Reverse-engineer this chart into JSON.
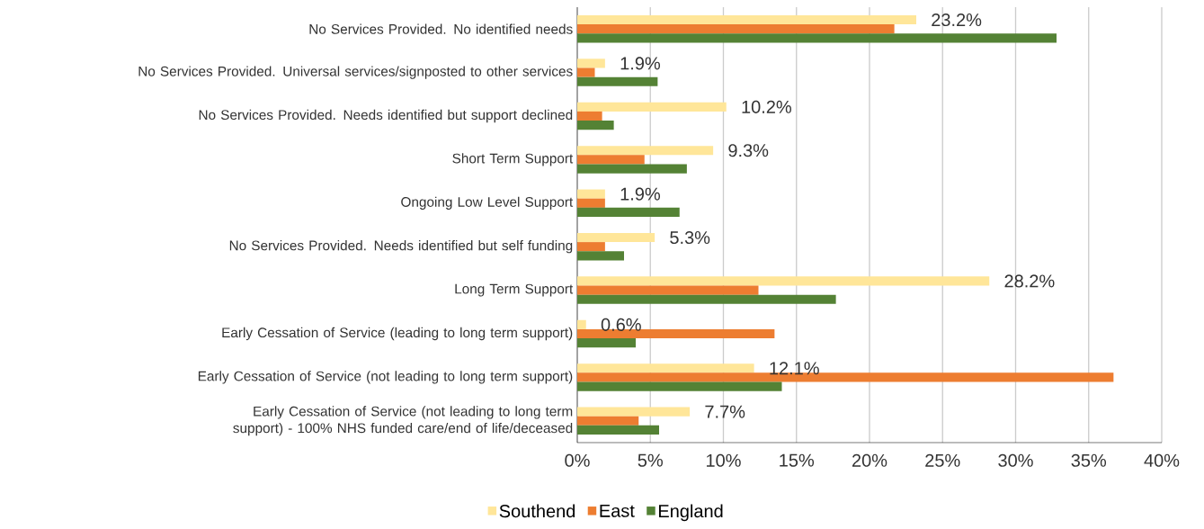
{
  "chart_data": {
    "type": "bar",
    "orientation": "horizontal",
    "categories": [
      "No Services Provided. No identified needs",
      "No Services Provided. Universal services/signposted to other services",
      "No Services Provided. Needs identified but support declined",
      "Short Term Support",
      "Ongoing Low Level Support",
      "No Services Provided. Needs identified but self funding",
      "Long Term Support",
      "Early Cessation of Service (leading to long term support)",
      "Early Cessation of Service (not leading to long term support)",
      "Early Cessation of Service (not leading to long term support) - 100% NHS funded care/end of life/deceased"
    ],
    "series": [
      {
        "name": "Southend",
        "color": "#ffe699",
        "values": [
          23.2,
          1.9,
          10.2,
          9.3,
          1.9,
          5.3,
          28.2,
          0.6,
          12.1,
          7.7
        ],
        "value_labels": [
          "23.2%",
          "1.9%",
          "10.2%",
          "9.3%",
          "1.9%",
          "5.3%",
          "28.2%",
          "0.6%",
          "12.1%",
          "7.7%"
        ]
      },
      {
        "name": "East",
        "color": "#ed7d31",
        "values": [
          21.7,
          1.2,
          1.7,
          4.6,
          1.9,
          1.9,
          12.4,
          13.5,
          36.7,
          4.2
        ]
      },
      {
        "name": "England",
        "color": "#548235",
        "values": [
          32.8,
          5.5,
          2.5,
          7.5,
          7.0,
          3.2,
          17.7,
          4.0,
          14.0,
          5.6
        ]
      }
    ],
    "xlim": [
      0,
      40
    ],
    "xticks": [
      {
        "value": 0,
        "label": "0%"
      },
      {
        "value": 5,
        "label": "5%"
      },
      {
        "value": 10,
        "label": "10%"
      },
      {
        "value": 15,
        "label": "15%"
      },
      {
        "value": 20,
        "label": "20%"
      },
      {
        "value": 25,
        "label": "25%"
      },
      {
        "value": 30,
        "label": "30%"
      },
      {
        "value": 35,
        "label": "35%"
      },
      {
        "value": 40,
        "label": "40%"
      }
    ],
    "grid": "x",
    "legend": "bottom"
  }
}
